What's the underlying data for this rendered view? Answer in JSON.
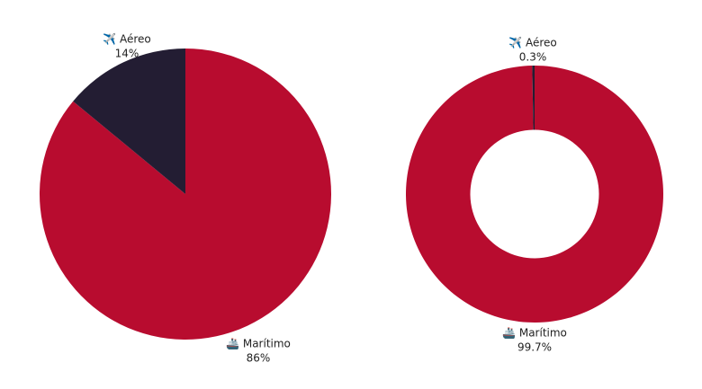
{
  "chart_data": [
    {
      "type": "pie",
      "categories": [
        "🚢 Marítimo",
        "✈️ Aéreo"
      ],
      "values": [
        86,
        14
      ],
      "value_labels": [
        "86%",
        "14%"
      ],
      "colors": [
        "#b80c2f",
        "#231d33"
      ]
    },
    {
      "type": "donut",
      "categories": [
        "🚢 Marítimo",
        "✈️ Aéreo"
      ],
      "values": [
        99.7,
        0.3
      ],
      "value_labels": [
        "99.7%",
        "0.3%"
      ],
      "colors": [
        "#b80c2f",
        "#231d33"
      ]
    }
  ]
}
